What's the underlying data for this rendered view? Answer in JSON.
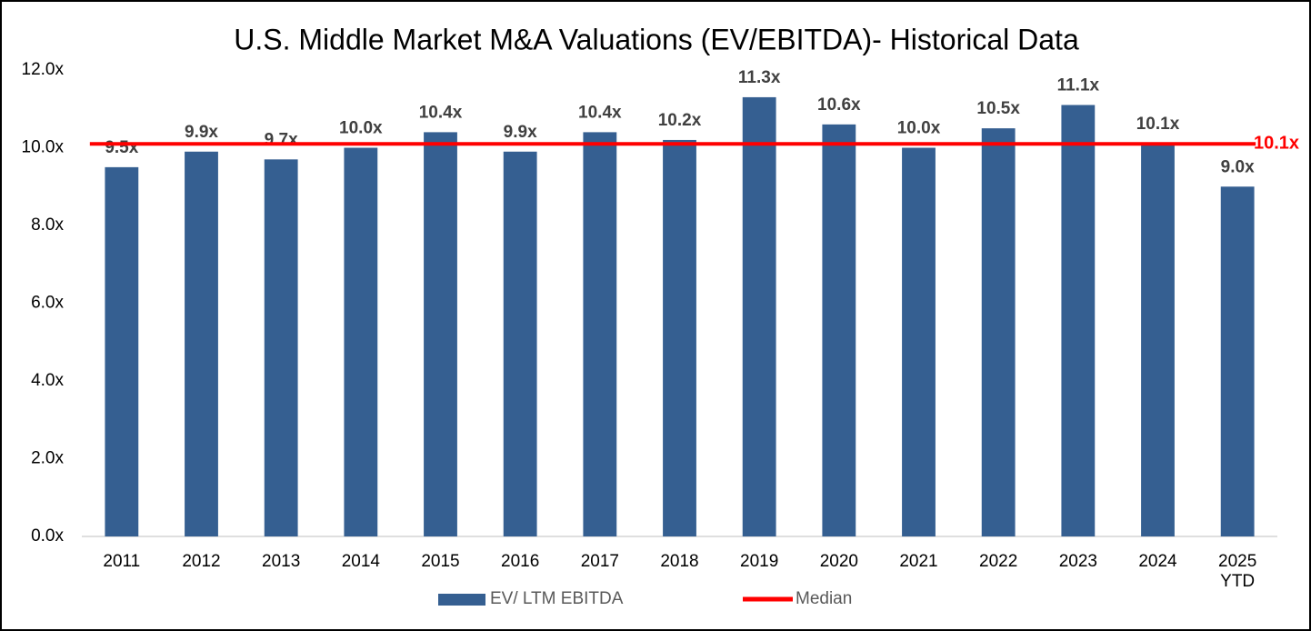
{
  "chart_data": {
    "type": "bar",
    "title": "U.S. Middle Market M&A Valuations (EV/EBITDA)- Historical Data",
    "categories": [
      "2011",
      "2012",
      "2013",
      "2014",
      "2015",
      "2016",
      "2017",
      "2018",
      "2019",
      "2020",
      "2021",
      "2022",
      "2023",
      "2024",
      "2025 YTD"
    ],
    "series": [
      {
        "name": "EV/ LTM EBITDA",
        "color": "#355f91",
        "values": [
          9.5,
          9.9,
          9.7,
          10.0,
          10.4,
          9.9,
          10.4,
          10.2,
          11.3,
          10.6,
          10.0,
          10.5,
          11.1,
          10.1,
          9.0
        ],
        "value_labels": [
          "9.5x",
          "9.9x",
          "9.7x",
          "10.0x",
          "10.4x",
          "9.9x",
          "10.4x",
          "10.2x",
          "11.3x",
          "10.6x",
          "10.0x",
          "10.5x",
          "11.1x",
          "10.1x",
          "9.0x"
        ]
      }
    ],
    "median": {
      "name": "Median",
      "color": "#ff0000",
      "value": 10.1,
      "value_label": "10.1x"
    },
    "ylim": [
      0,
      12
    ],
    "yticks": [
      {
        "value": 0,
        "label": "0.0x"
      },
      {
        "value": 2,
        "label": "2.0x"
      },
      {
        "value": 4,
        "label": "4.0x"
      },
      {
        "value": 6,
        "label": "6.0x"
      },
      {
        "value": 8,
        "label": "8.0x"
      },
      {
        "value": 10,
        "label": "10.0x"
      },
      {
        "value": 12,
        "label": "12.0x"
      }
    ],
    "grid": false
  }
}
